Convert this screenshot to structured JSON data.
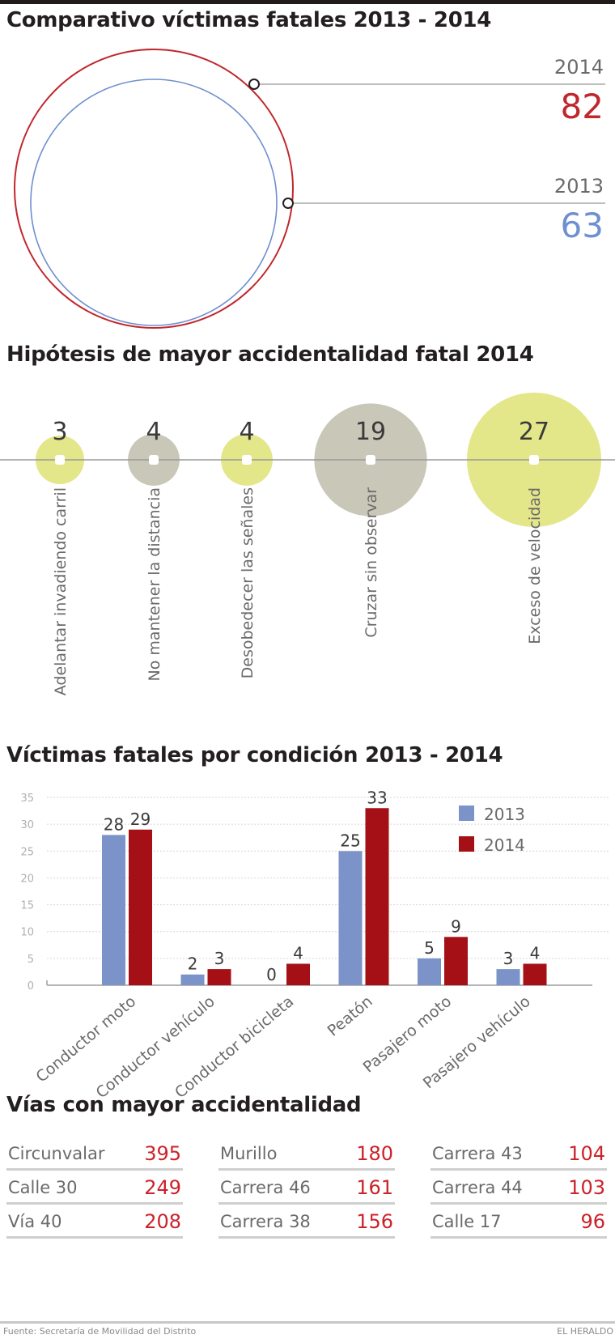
{
  "comparativo": {
    "title": "Comparativo víctimas fatales 2013 - 2014",
    "items": [
      {
        "year": "2014",
        "value": 82,
        "color": "#c0272d"
      },
      {
        "year": "2013",
        "value": 63,
        "color": "#6f8fd0"
      }
    ]
  },
  "hipotesis": {
    "title": "Hipótesis de mayor accidentalidad fatal 2014",
    "items": [
      {
        "label": "Adelantar invadiendo carril",
        "value": 3,
        "color": "#e4e68a"
      },
      {
        "label": "No mantener la distancia",
        "value": 4,
        "color": "#c9c7b8"
      },
      {
        "label": "Desobedecer las señales",
        "value": 4,
        "color": "#e4e68a"
      },
      {
        "label": "Cruzar sin observar",
        "value": 19,
        "color": "#c9c7b8"
      },
      {
        "label": "Exceso de velocidad",
        "value": 27,
        "color": "#e4e68a"
      }
    ]
  },
  "chart_data": {
    "type": "bar",
    "title": "Víctimas fatales por condición 2013 - 2014",
    "xlabel": "",
    "ylabel": "",
    "ylim": [
      0,
      35
    ],
    "yticks": [
      0,
      5,
      10,
      15,
      20,
      25,
      30,
      35
    ],
    "grid": true,
    "legend": "top-right",
    "categories": [
      "Conductor moto",
      "Conductor vehículo",
      "Conductor bicicleta",
      "Peatón",
      "Pasajero moto",
      "Pasajero vehículo"
    ],
    "series": [
      {
        "name": "2013",
        "color": "#7b93c9",
        "values": [
          28,
          2,
          0,
          25,
          5,
          3
        ]
      },
      {
        "name": "2014",
        "color": "#a51016",
        "values": [
          29,
          3,
          4,
          33,
          9,
          4
        ]
      }
    ]
  },
  "vias": {
    "title": "Vías con mayor accidentalidad",
    "columns": [
      [
        {
          "name": "Circunvalar",
          "value": "395"
        },
        {
          "name": "Calle 30",
          "value": "249"
        },
        {
          "name": "Vía 40",
          "value": "208"
        }
      ],
      [
        {
          "name": "Murillo",
          "value": "180"
        },
        {
          "name": "Carrera 46",
          "value": "161"
        },
        {
          "name": "Carrera 38",
          "value": "156"
        }
      ],
      [
        {
          "name": "Carrera 43",
          "value": "104"
        },
        {
          "name": "Carrera 44",
          "value": "103"
        },
        {
          "name": "Calle 17",
          "value": "96"
        }
      ]
    ]
  },
  "footer": {
    "source": "Fuente: Secretaría de Movilidad del Distrito",
    "brand": "EL HERALDO"
  }
}
